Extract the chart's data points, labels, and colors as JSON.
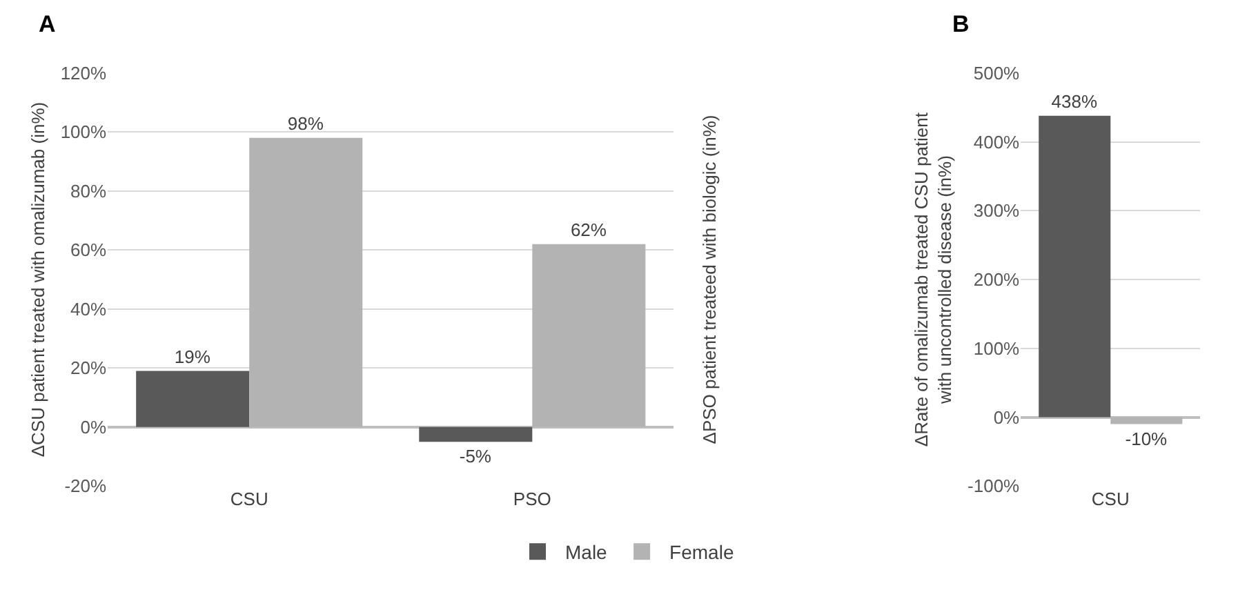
{
  "chart_data": [
    {
      "type": "bar",
      "title": "A",
      "ylabel": "ΔCSU patient treated with omalizumab (in%)",
      "y2label": "ΔPSO patient treateed with biologic (in%)",
      "categories": [
        "CSU",
        "PSO"
      ],
      "series": [
        {
          "name": "Male",
          "color": "#595959",
          "values": [
            19,
            -5
          ],
          "value_labels": [
            "19%",
            "-5%"
          ]
        },
        {
          "name": "Female",
          "color": "#b3b3b3",
          "values": [
            98,
            62
          ],
          "value_labels": [
            "98%",
            "62%"
          ]
        }
      ],
      "ylim": [
        -20,
        120
      ],
      "yticks": [
        {
          "value": -20,
          "label": "-20%"
        },
        {
          "value": 0,
          "label": "0%"
        },
        {
          "value": 20,
          "label": "20%"
        },
        {
          "value": 40,
          "label": "40%"
        },
        {
          "value": 60,
          "label": "60%"
        },
        {
          "value": 80,
          "label": "80%"
        },
        {
          "value": 100,
          "label": "100%"
        },
        {
          "value": 120,
          "label": "120%"
        }
      ],
      "grid": "y",
      "legend": "bottom"
    },
    {
      "type": "bar",
      "title": "B",
      "ylabel": "ΔRate of omalizumab treated CSU patient\nwith uncontrolled disease (in%)",
      "categories": [
        "CSU"
      ],
      "series": [
        {
          "color": "#595959",
          "values": [
            438
          ],
          "value_labels": [
            "438%"
          ]
        },
        {
          "color": "#b3b3b3",
          "values": [
            -10
          ],
          "value_labels": [
            "-10%"
          ]
        }
      ],
      "ylim": [
        -100,
        500
      ],
      "yticks": [
        {
          "value": -100,
          "label": "-100%"
        },
        {
          "value": 0,
          "label": "0%"
        },
        {
          "value": 100,
          "label": "100%"
        },
        {
          "value": 200,
          "label": "200%"
        },
        {
          "value": 300,
          "label": "300%"
        },
        {
          "value": 400,
          "label": "400%"
        },
        {
          "value": 500,
          "label": "500%"
        }
      ],
      "grid": "y"
    }
  ]
}
